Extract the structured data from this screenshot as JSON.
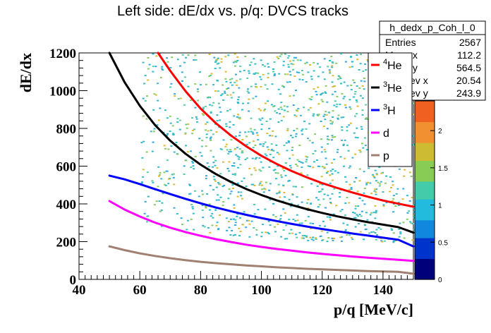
{
  "chart_data": {
    "type": "scatter",
    "title": "Left side: dE/dx vs. p/q: DVCS tracks",
    "xlabel": "p/q [MeV/c]",
    "ylabel": "dE/dx",
    "xlim": [
      40,
      150
    ],
    "ylim": [
      0,
      1200
    ],
    "x_ticks": [
      40,
      60,
      80,
      100,
      120,
      140
    ],
    "y_ticks": [
      0,
      200,
      400,
      600,
      800,
      1000,
      1200
    ],
    "grid": false,
    "stats_box": {
      "name": "h_dedx_p_Coh_l_0",
      "rows": [
        {
          "label": "Entries",
          "value": "2567"
        },
        {
          "label": "Mean x",
          "value": "112.2"
        },
        {
          "label": "Mean y",
          "value": "564.5"
        },
        {
          "label": "Std Dev x",
          "value": "20.54"
        },
        {
          "label": "Std Dev y",
          "value": "243.9"
        }
      ]
    },
    "colorbar": {
      "ticks": [
        {
          "value": 0,
          "label": "0"
        },
        {
          "value": 0.5,
          "label": "0.5"
        },
        {
          "value": 1,
          "label": "1"
        },
        {
          "value": 1.5,
          "label": "1.5"
        },
        {
          "value": 2,
          "label": "2"
        }
      ],
      "range": [
        0,
        2.4
      ]
    },
    "series": [
      {
        "name": "4He",
        "sup": "4",
        "base": "He",
        "color": "#ff0000",
        "x": [
          66,
          70,
          75,
          80,
          85,
          90,
          95,
          100,
          105,
          110,
          115,
          120,
          125,
          130,
          135,
          140,
          145,
          150
        ],
        "y": [
          1200,
          1105,
          998,
          905,
          828,
          762,
          705,
          655,
          612,
          574,
          540,
          510,
          484,
          460,
          438,
          418,
          401,
          385
        ]
      },
      {
        "name": "3He",
        "sup": "3",
        "base": "He",
        "color": "#000000",
        "x": [
          50,
          55,
          60,
          65,
          70,
          75,
          80,
          85,
          90,
          95,
          100,
          105,
          110,
          115,
          120,
          125,
          130,
          135,
          140,
          145,
          150
        ],
        "y": [
          1200,
          1045,
          920,
          818,
          735,
          666,
          608,
          558,
          516,
          479,
          447,
          419,
          394,
          372,
          352,
          334,
          318,
          303,
          290,
          277,
          248
        ]
      },
      {
        "name": "3H",
        "sup": "3",
        "base": "H",
        "color": "#0000ff",
        "x": [
          50,
          55,
          60,
          65,
          70,
          75,
          80,
          85,
          90,
          95,
          100,
          105,
          110,
          115,
          120,
          125,
          130,
          135,
          140,
          145,
          150
        ],
        "y": [
          550,
          530,
          505,
          478,
          452,
          427,
          403,
          381,
          361,
          342,
          325,
          309,
          294,
          280,
          267,
          255,
          243,
          232,
          221,
          210,
          175
        ]
      },
      {
        "name": "d",
        "sup": "",
        "base": "d",
        "color": "#ff00ff",
        "x": [
          50,
          55,
          60,
          65,
          70,
          75,
          80,
          85,
          90,
          95,
          100,
          105,
          110,
          115,
          120,
          125,
          130,
          135,
          140,
          145,
          150
        ],
        "y": [
          415,
          370,
          333,
          301,
          274,
          251,
          231,
          213,
          198,
          184,
          172,
          161,
          152,
          143,
          135,
          128,
          121,
          115,
          109,
          104,
          98
        ]
      },
      {
        "name": "p",
        "sup": "",
        "base": "p",
        "color": "#a08070",
        "x": [
          50,
          55,
          60,
          65,
          70,
          75,
          80,
          85,
          90,
          95,
          100,
          105,
          110,
          115,
          120,
          125,
          130,
          135,
          140,
          145,
          150
        ],
        "y": [
          175,
          155,
          138,
          124,
          112,
          102,
          93,
          86,
          80,
          74,
          69,
          64,
          60,
          56,
          53,
          50,
          47,
          44,
          42,
          40,
          30
        ]
      }
    ]
  }
}
